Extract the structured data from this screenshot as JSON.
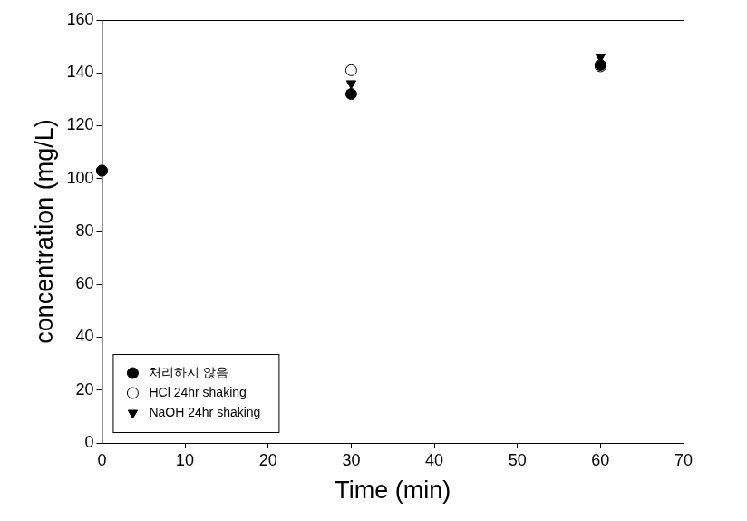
{
  "chart_data": {
    "type": "scatter",
    "x_label": "Time (min)",
    "y_label": "concentration (mg/L)",
    "series": [
      {
        "name": "처리하지 않음",
        "color": "#000000",
        "marker": "circle",
        "x": [
          0,
          30,
          60
        ],
        "values": [
          103,
          132,
          143
        ]
      },
      {
        "name": "HCl 24hr shaking",
        "color": "#000000",
        "marker": "open_circle",
        "x": [
          0,
          30,
          60
        ],
        "values": [
          103,
          141,
          142.5
        ]
      },
      {
        "name": "NaOH 24hr shaking",
        "color": "#000000",
        "marker": "triangle_down",
        "x": [
          0,
          30,
          60
        ],
        "values": [
          103,
          136,
          146
        ]
      }
    ],
    "xlim": [
      0,
      70
    ],
    "xticks": [
      0,
      10,
      20,
      30,
      40,
      50,
      60,
      70
    ],
    "ylim": [
      0,
      160
    ],
    "yticks": [
      0,
      20,
      40,
      60,
      80,
      100,
      120,
      140,
      160
    ],
    "grid": false,
    "legend": "lower left"
  }
}
